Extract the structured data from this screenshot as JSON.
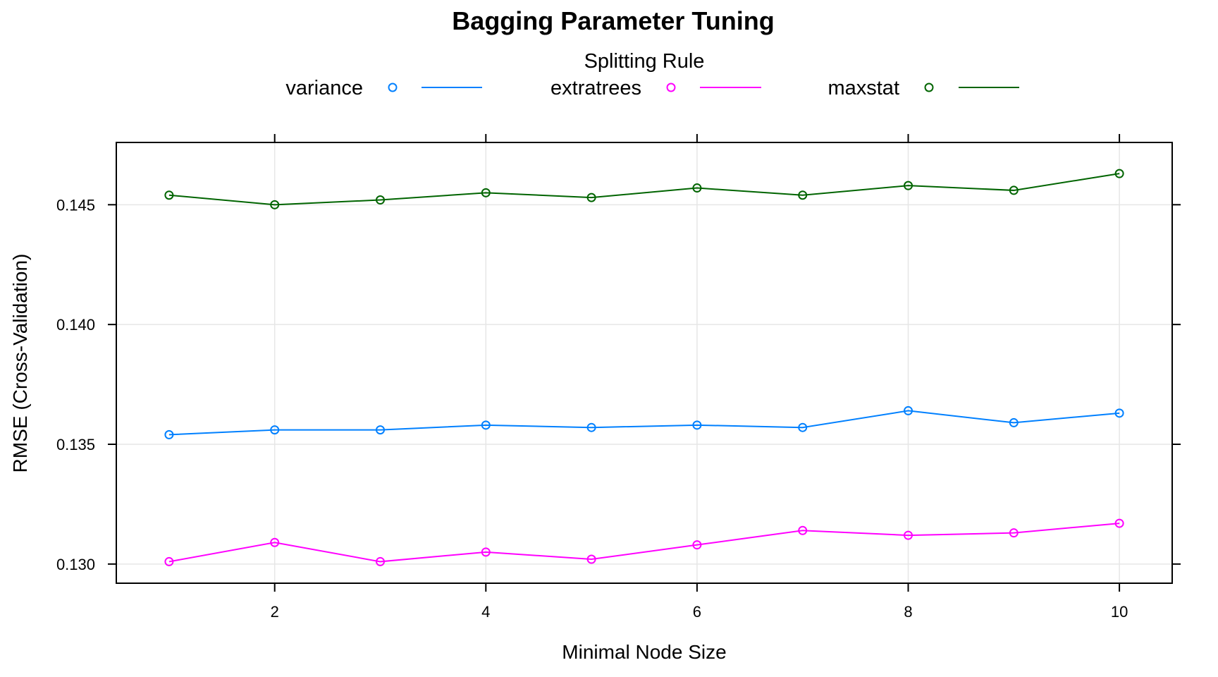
{
  "chart_data": {
    "type": "line",
    "title": "Bagging Parameter Tuning",
    "xlabel": "Minimal Node Size",
    "ylabel": "RMSE (Cross-Validation)",
    "legend_title": "Splitting Rule",
    "legend_placement": "top",
    "grid": true,
    "xlim": [
      0.5,
      10.5
    ],
    "ylim": [
      0.1292,
      0.1476
    ],
    "x": [
      1,
      2,
      3,
      4,
      5,
      6,
      7,
      8,
      9,
      10
    ],
    "x_ticks": [
      2,
      4,
      6,
      8,
      10
    ],
    "y_ticks": [
      0.13,
      0.135,
      0.14,
      0.145
    ],
    "x_tick_labels": [
      "2",
      "4",
      "6",
      "8",
      "10"
    ],
    "y_tick_labels": [
      "0.130",
      "0.135",
      "0.140",
      "0.145"
    ],
    "series": [
      {
        "name": "variance",
        "color": "#0080ff",
        "values": [
          0.1354,
          0.1356,
          0.1356,
          0.1358,
          0.1357,
          0.1358,
          0.1357,
          0.1364,
          0.1359,
          0.1363
        ]
      },
      {
        "name": "extratrees",
        "color": "#ff00ff",
        "values": [
          0.1301,
          0.1309,
          0.1301,
          0.1305,
          0.1302,
          0.1308,
          0.1314,
          0.1312,
          0.1313,
          0.1317
        ]
      },
      {
        "name": "maxstat",
        "color": "#006400",
        "values": [
          0.1454,
          0.145,
          0.1452,
          0.1455,
          0.1453,
          0.1457,
          0.1454,
          0.1458,
          0.1456,
          0.1463
        ]
      }
    ]
  }
}
